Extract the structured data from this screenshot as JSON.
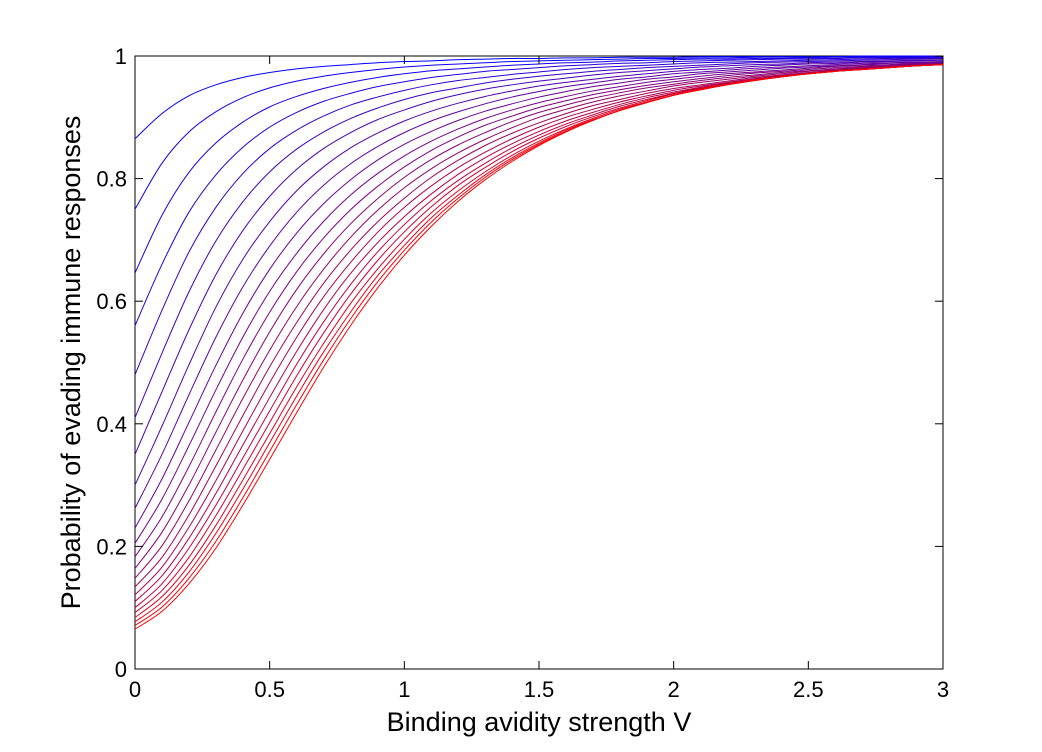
{
  "chart_data": {
    "type": "line",
    "title": "",
    "xlabel": "Binding avidity strength V",
    "ylabel": "Probability of evading immune responses",
    "xlim": [
      0,
      3
    ],
    "ylim": [
      0,
      1
    ],
    "xticks": [
      "0",
      "0.5",
      "1",
      "1.5",
      "2",
      "2.5",
      "3"
    ],
    "yticks": [
      "0",
      "0.2",
      "0.4",
      "0.6",
      "0.8",
      "1"
    ],
    "grid": false,
    "legend": "none",
    "colors": {
      "first_series": "#0000ff",
      "last_series": "#ff0000",
      "axes": "#000000",
      "background": "#ffffff"
    },
    "x": [
      0,
      0.1,
      0.2,
      0.3,
      0.4,
      0.5,
      0.6,
      0.7,
      0.8,
      0.9,
      1.0,
      1.1,
      1.2,
      1.3,
      1.4,
      1.5,
      1.6,
      1.7,
      1.8,
      1.9,
      2.0,
      2.1,
      2.2,
      2.3,
      2.4,
      2.5,
      2.6,
      2.7,
      2.8,
      2.9,
      3.0
    ],
    "series": [
      {
        "values": [
          0.865,
          0.906,
          0.935,
          0.953,
          0.965,
          0.973,
          0.979,
          0.983,
          0.986,
          0.989,
          0.991,
          0.992,
          0.994,
          0.995,
          0.996,
          0.996,
          0.997,
          0.997,
          0.998,
          0.998,
          0.998,
          0.999,
          0.999,
          0.999,
          0.999,
          0.999,
          0.999,
          1.0,
          1.0,
          1.0,
          1.0
        ]
      },
      {
        "values": [
          0.75,
          0.825,
          0.876,
          0.909,
          0.932,
          0.948,
          0.959,
          0.967,
          0.973,
          0.978,
          0.982,
          0.985,
          0.987,
          0.989,
          0.991,
          0.992,
          0.993,
          0.994,
          0.995,
          0.996,
          0.996,
          0.997,
          0.997,
          0.998,
          0.998,
          0.998,
          0.999,
          0.999,
          0.999,
          0.999,
          0.999
        ]
      },
      {
        "values": [
          0.646,
          0.74,
          0.81,
          0.858,
          0.892,
          0.917,
          0.934,
          0.947,
          0.957,
          0.965,
          0.971,
          0.976,
          0.979,
          0.982,
          0.985,
          0.987,
          0.989,
          0.99,
          0.992,
          0.993,
          0.994,
          0.995,
          0.995,
          0.996,
          0.996,
          0.997,
          0.997,
          0.998,
          0.998,
          0.998,
          0.999
        ]
      },
      {
        "values": [
          0.56,
          0.66,
          0.745,
          0.806,
          0.851,
          0.884,
          0.908,
          0.926,
          0.939,
          0.95,
          0.958,
          0.965,
          0.97,
          0.975,
          0.978,
          0.981,
          0.984,
          0.986,
          0.988,
          0.989,
          0.991,
          0.992,
          0.993,
          0.994,
          0.995,
          0.995,
          0.996,
          0.997,
          0.997,
          0.997,
          0.998
        ]
      },
      {
        "values": [
          0.48,
          0.585,
          0.68,
          0.753,
          0.808,
          0.849,
          0.879,
          0.902,
          0.92,
          0.933,
          0.944,
          0.953,
          0.96,
          0.965,
          0.97,
          0.974,
          0.978,
          0.981,
          0.983,
          0.985,
          0.987,
          0.989,
          0.99,
          0.991,
          0.992,
          0.993,
          0.994,
          0.995,
          0.996,
          0.996,
          0.997
        ]
      },
      {
        "values": [
          0.41,
          0.515,
          0.615,
          0.698,
          0.762,
          0.811,
          0.848,
          0.876,
          0.898,
          0.915,
          0.929,
          0.94,
          0.948,
          0.956,
          0.962,
          0.967,
          0.971,
          0.975,
          0.978,
          0.981,
          0.983,
          0.985,
          0.987,
          0.989,
          0.99,
          0.991,
          0.992,
          0.993,
          0.994,
          0.995,
          0.996
        ]
      },
      {
        "values": [
          0.35,
          0.452,
          0.553,
          0.643,
          0.715,
          0.771,
          0.815,
          0.849,
          0.875,
          0.896,
          0.912,
          0.926,
          0.937,
          0.946,
          0.953,
          0.959,
          0.964,
          0.969,
          0.973,
          0.976,
          0.979,
          0.982,
          0.984,
          0.986,
          0.987,
          0.989,
          0.99,
          0.991,
          0.992,
          0.993,
          0.994
        ]
      },
      {
        "values": [
          0.3,
          0.396,
          0.496,
          0.59,
          0.668,
          0.73,
          0.78,
          0.819,
          0.85,
          0.874,
          0.894,
          0.91,
          0.923,
          0.934,
          0.943,
          0.951,
          0.957,
          0.962,
          0.967,
          0.971,
          0.975,
          0.978,
          0.98,
          0.983,
          0.985,
          0.987,
          0.988,
          0.99,
          0.991,
          0.992,
          0.993
        ]
      },
      {
        "values": [
          0.262,
          0.35,
          0.447,
          0.541,
          0.623,
          0.69,
          0.745,
          0.789,
          0.824,
          0.852,
          0.875,
          0.894,
          0.909,
          0.922,
          0.933,
          0.942,
          0.95,
          0.956,
          0.962,
          0.966,
          0.971,
          0.974,
          0.977,
          0.98,
          0.982,
          0.984,
          0.986,
          0.988,
          0.989,
          0.99,
          0.991
        ]
      },
      {
        "values": [
          0.23,
          0.31,
          0.402,
          0.495,
          0.58,
          0.652,
          0.711,
          0.759,
          0.798,
          0.83,
          0.856,
          0.877,
          0.895,
          0.91,
          0.922,
          0.933,
          0.942,
          0.95,
          0.956,
          0.962,
          0.966,
          0.971,
          0.974,
          0.977,
          0.98,
          0.982,
          0.984,
          0.986,
          0.988,
          0.989,
          0.99
        ]
      },
      {
        "values": [
          0.205,
          0.277,
          0.364,
          0.455,
          0.541,
          0.616,
          0.678,
          0.73,
          0.773,
          0.808,
          0.837,
          0.861,
          0.881,
          0.898,
          0.912,
          0.924,
          0.934,
          0.943,
          0.95,
          0.957,
          0.962,
          0.967,
          0.971,
          0.974,
          0.977,
          0.98,
          0.983,
          0.985,
          0.986,
          0.988,
          0.989
        ]
      },
      {
        "values": [
          0.183,
          0.248,
          0.33,
          0.419,
          0.505,
          0.582,
          0.648,
          0.703,
          0.749,
          0.787,
          0.819,
          0.846,
          0.868,
          0.887,
          0.902,
          0.916,
          0.927,
          0.937,
          0.945,
          0.952,
          0.958,
          0.963,
          0.968,
          0.972,
          0.975,
          0.978,
          0.981,
          0.983,
          0.985,
          0.987,
          0.988
        ]
      },
      {
        "values": [
          0.164,
          0.223,
          0.3,
          0.386,
          0.471,
          0.55,
          0.619,
          0.677,
          0.726,
          0.767,
          0.802,
          0.831,
          0.855,
          0.875,
          0.893,
          0.908,
          0.92,
          0.931,
          0.94,
          0.948,
          0.954,
          0.96,
          0.965,
          0.969,
          0.973,
          0.976,
          0.979,
          0.982,
          0.984,
          0.986,
          0.987
        ]
      },
      {
        "values": [
          0.148,
          0.201,
          0.274,
          0.357,
          0.441,
          0.52,
          0.591,
          0.652,
          0.704,
          0.748,
          0.785,
          0.816,
          0.842,
          0.864,
          0.883,
          0.9,
          0.913,
          0.925,
          0.935,
          0.943,
          0.951,
          0.957,
          0.962,
          0.967,
          0.971,
          0.975,
          0.978,
          0.981,
          0.983,
          0.985,
          0.987
        ]
      },
      {
        "values": [
          0.134,
          0.182,
          0.251,
          0.331,
          0.413,
          0.493,
          0.565,
          0.629,
          0.683,
          0.729,
          0.768,
          0.802,
          0.83,
          0.854,
          0.874,
          0.891,
          0.906,
          0.919,
          0.929,
          0.939,
          0.947,
          0.953,
          0.959,
          0.965,
          0.969,
          0.973,
          0.977,
          0.98,
          0.982,
          0.984,
          0.986
        ]
      },
      {
        "values": [
          0.121,
          0.166,
          0.231,
          0.307,
          0.388,
          0.467,
          0.541,
          0.607,
          0.663,
          0.712,
          0.753,
          0.788,
          0.818,
          0.843,
          0.865,
          0.884,
          0.9,
          0.913,
          0.925,
          0.935,
          0.944,
          0.951,
          0.957,
          0.963,
          0.968,
          0.972,
          0.976,
          0.979,
          0.981,
          0.984,
          0.986
        ]
      },
      {
        "values": [
          0.11,
          0.152,
          0.213,
          0.286,
          0.365,
          0.443,
          0.518,
          0.586,
          0.645,
          0.695,
          0.738,
          0.775,
          0.807,
          0.834,
          0.857,
          0.877,
          0.894,
          0.908,
          0.921,
          0.932,
          0.941,
          0.949,
          0.956,
          0.962,
          0.967,
          0.971,
          0.975,
          0.978,
          0.981,
          0.984,
          0.986
        ]
      },
      {
        "values": [
          0.1,
          0.139,
          0.197,
          0.267,
          0.344,
          0.421,
          0.497,
          0.566,
          0.627,
          0.68,
          0.725,
          0.764,
          0.797,
          0.825,
          0.85,
          0.871,
          0.889,
          0.904,
          0.918,
          0.929,
          0.939,
          0.948,
          0.955,
          0.961,
          0.966,
          0.971,
          0.975,
          0.978,
          0.981,
          0.984,
          0.986
        ]
      },
      {
        "values": [
          0.092,
          0.128,
          0.182,
          0.25,
          0.325,
          0.402,
          0.478,
          0.548,
          0.611,
          0.666,
          0.713,
          0.754,
          0.789,
          0.818,
          0.844,
          0.866,
          0.885,
          0.901,
          0.915,
          0.927,
          0.938,
          0.947,
          0.954,
          0.961,
          0.966,
          0.971,
          0.975,
          0.978,
          0.981,
          0.984,
          0.986
        ]
      },
      {
        "values": [
          0.084,
          0.118,
          0.169,
          0.234,
          0.308,
          0.384,
          0.46,
          0.531,
          0.596,
          0.652,
          0.701,
          0.744,
          0.78,
          0.811,
          0.838,
          0.861,
          0.881,
          0.898,
          0.913,
          0.925,
          0.936,
          0.946,
          0.954,
          0.96,
          0.966,
          0.971,
          0.975,
          0.978,
          0.981,
          0.984,
          0.986
        ]
      },
      {
        "values": [
          0.077,
          0.109,
          0.158,
          0.221,
          0.293,
          0.369,
          0.445,
          0.517,
          0.582,
          0.641,
          0.691,
          0.736,
          0.773,
          0.806,
          0.834,
          0.858,
          0.879,
          0.896,
          0.911,
          0.924,
          0.936,
          0.945,
          0.953,
          0.96,
          0.966,
          0.971,
          0.975,
          0.978,
          0.981,
          0.984,
          0.986
        ]
      },
      {
        "values": [
          0.071,
          0.101,
          0.148,
          0.208,
          0.279,
          0.355,
          0.431,
          0.504,
          0.571,
          0.631,
          0.683,
          0.729,
          0.768,
          0.802,
          0.831,
          0.856,
          0.877,
          0.895,
          0.911,
          0.924,
          0.936,
          0.945,
          0.953,
          0.96,
          0.966,
          0.971,
          0.975,
          0.978,
          0.981,
          0.984,
          0.986
        ]
      },
      {
        "values": [
          0.065,
          0.094,
          0.139,
          0.197,
          0.267,
          0.342,
          0.418,
          0.492,
          0.56,
          0.621,
          0.675,
          0.722,
          0.763,
          0.798,
          0.828,
          0.854,
          0.876,
          0.895,
          0.911,
          0.924,
          0.936,
          0.945,
          0.953,
          0.96,
          0.966,
          0.971,
          0.975,
          0.978,
          0.981,
          0.984,
          0.986
        ]
      }
    ]
  }
}
